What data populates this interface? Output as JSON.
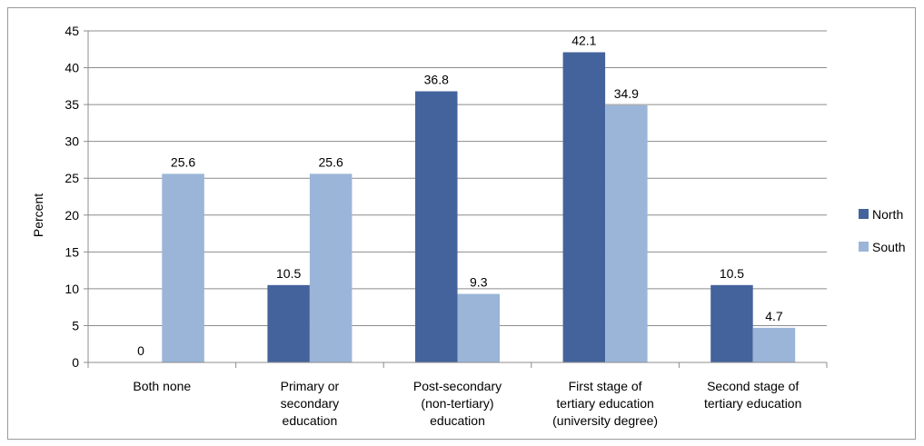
{
  "chart_data": {
    "type": "bar",
    "categories": [
      [
        "Both none"
      ],
      [
        "Primary or",
        "secondary",
        "education"
      ],
      [
        "Post-secondary",
        "(non-tertiary)",
        "education"
      ],
      [
        "First stage of",
        "tertiary education",
        "(university degree)"
      ],
      [
        "Second stage of",
        "tertiary education"
      ]
    ],
    "series": [
      {
        "name": "North",
        "color": "#44639c",
        "values": [
          0,
          10.5,
          36.8,
          42.1,
          10.5
        ],
        "labels": [
          "0",
          "10.5",
          "36.8",
          "42.1",
          "10.5"
        ]
      },
      {
        "name": "South",
        "color": "#9ab5d8",
        "values": [
          25.6,
          25.6,
          9.3,
          34.9,
          4.7
        ],
        "labels": [
          "25.6",
          "25.6",
          "9.3",
          "34.9",
          "4.7"
        ]
      }
    ],
    "ylabel": "Percent",
    "ylim": [
      0,
      45
    ],
    "yticks": [
      "0",
      "5",
      "10",
      "15",
      "20",
      "25",
      "30",
      "35",
      "40",
      "45"
    ],
    "grid": true,
    "legend": "right"
  }
}
